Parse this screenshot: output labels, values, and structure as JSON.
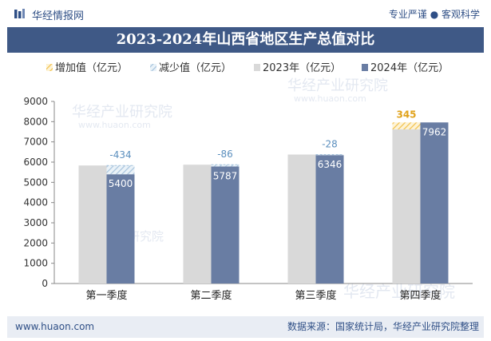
{
  "brand": {
    "name": "华经情报网",
    "tagline": "专业严谨 ● 客观科学"
  },
  "title": "2023-2024年山西省地区生产总值对比",
  "footer": {
    "url": "www.huaon.com",
    "source": "数据来源：国家统计局，华经产业研究院整理"
  },
  "watermark": {
    "text": "华经产业研究院",
    "url": "www.huaon.com"
  },
  "colors": {
    "bar2023": "#d9d9d9",
    "bar2024": "#697da3",
    "increase": "#f5c242",
    "decrease": "#a8c4dd",
    "increase_label": "#e0a21a",
    "decrease_label": "#5b8fbe",
    "title_bg": "#3f5986"
  },
  "chart_data": {
    "type": "bar",
    "categories": [
      "第一季度",
      "第二季度",
      "第三季度",
      "第四季度"
    ],
    "series": [
      {
        "name": "2023年（亿元）",
        "values": [
          5834,
          5873,
          6374,
          7617
        ]
      },
      {
        "name": "2024年（亿元）",
        "values": [
          5400,
          5787,
          6346,
          7962
        ]
      }
    ],
    "changes": {
      "values": [
        -434,
        -86,
        -28,
        345
      ],
      "labels": [
        "-434",
        "-86",
        "-28",
        "345"
      ]
    },
    "legend": [
      "增加值（亿元）",
      "减少值（亿元）",
      "2023年（亿元）",
      "2024年（亿元）"
    ],
    "legend_position": "top",
    "ylim": [
      0,
      9000
    ],
    "yticks": [
      0,
      1000,
      2000,
      3000,
      4000,
      5000,
      6000,
      7000,
      8000,
      9000
    ],
    "grid": false
  }
}
